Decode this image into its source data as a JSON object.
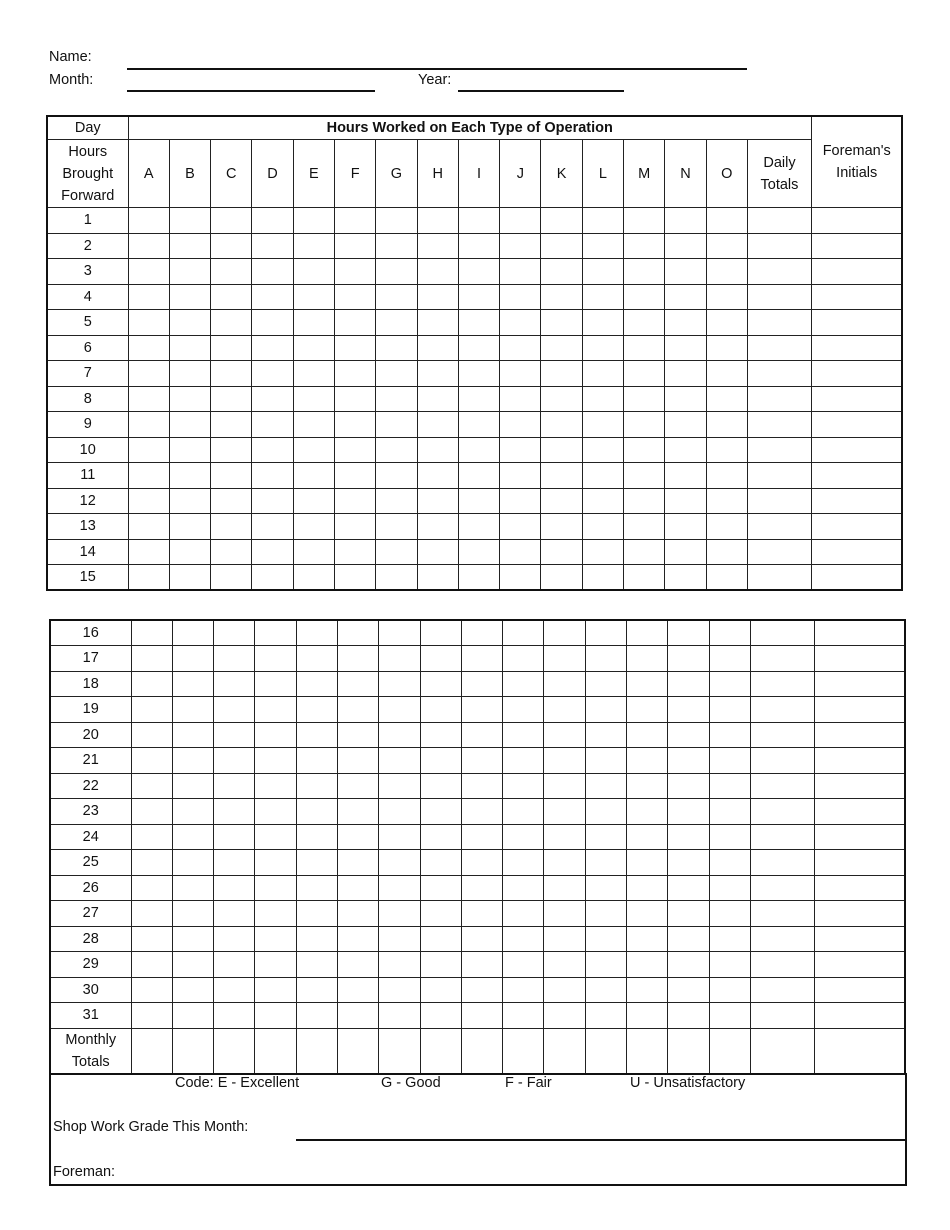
{
  "header": {
    "name_label": "Name:",
    "month_label": "Month:",
    "year_label": "Year:"
  },
  "table": {
    "day_label": "Day",
    "group_title": "Hours Worked on Each Type of Operation",
    "brought_forward_label": "Hours Brought Forward",
    "operation_columns": [
      "A",
      "B",
      "C",
      "D",
      "E",
      "F",
      "G",
      "H",
      "I",
      "J",
      "K",
      "L",
      "M",
      "N",
      "O"
    ],
    "daily_totals_label": "Daily Totals",
    "foreman_initials_label": "Foreman's Initials",
    "days_part1": [
      "1",
      "2",
      "3",
      "4",
      "5",
      "6",
      "7",
      "8",
      "9",
      "10",
      "11",
      "12",
      "13",
      "14",
      "15"
    ],
    "days_part2": [
      "16",
      "17",
      "18",
      "19",
      "20",
      "21",
      "22",
      "23",
      "24",
      "25",
      "26",
      "27",
      "28",
      "29",
      "30",
      "31"
    ],
    "monthly_totals_label": "Monthly Totals"
  },
  "footer": {
    "codes": [
      "Code: E - Excellent",
      "G - Good",
      "F - Fair",
      "U - Unsatisfactory"
    ],
    "shop_grade_label": "Shop Work Grade This Month:",
    "foreman_label": "Foreman:"
  }
}
